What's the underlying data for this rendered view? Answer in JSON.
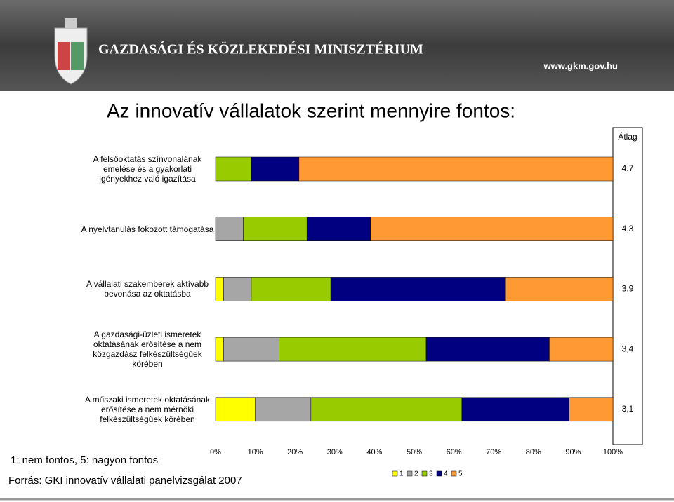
{
  "header": {
    "ministry": "GAZDASÁGI ÉS KÖZLEKEDÉSI MINISZTÉRIUM",
    "url": "www.gkm.gov.hu"
  },
  "chart_data": {
    "type": "stacked-bar-horizontal",
    "title": "Az innovatív vállalatok szerint mennyire fontos:",
    "categories": [
      "A felsőoktatás színvonalának emelése és a gyakorlati igényekhez való igazítása",
      "A nyelvtanulás fokozott támogatása",
      "A vállalati szakemberek aktívabb bevonása az oktatásba",
      "A gazdasági-üzleti ismeretek oktatásának erősítése a nem közgazdász felkészültségűek körében",
      "A műszaki ismeretek oktatásának erősítése a nem mérnöki felkészültségűek körében"
    ],
    "series": [
      {
        "name": "1",
        "color": "#ffff00",
        "values": [
          0,
          0,
          2,
          2,
          10
        ]
      },
      {
        "name": "2",
        "color": "#a6a6a6",
        "values": [
          0,
          7,
          7,
          14,
          14
        ]
      },
      {
        "name": "3",
        "color": "#99cc00",
        "values": [
          9,
          16,
          20,
          37,
          38
        ]
      },
      {
        "name": "4",
        "color": "#000080",
        "values": [
          12,
          16,
          44,
          31,
          27
        ]
      },
      {
        "name": "5",
        "color": "#ff9933",
        "values": [
          79,
          61,
          27,
          16,
          11
        ]
      }
    ],
    "xlim": [
      0,
      100
    ],
    "xticks": [
      {
        "value": 0,
        "label": "0%"
      },
      {
        "value": 10,
        "label": "10%"
      },
      {
        "value": 20,
        "label": "20%"
      },
      {
        "value": 30,
        "label": "30%"
      },
      {
        "value": 40,
        "label": "40%"
      },
      {
        "value": 50,
        "label": "50%"
      },
      {
        "value": 60,
        "label": "60%"
      },
      {
        "value": 70,
        "label": "70%"
      },
      {
        "value": 80,
        "label": "80%"
      },
      {
        "value": 90,
        "label": "90%"
      },
      {
        "value": 100,
        "label": "100%"
      }
    ],
    "averages": {
      "label": "Átlag",
      "values": [
        4.7,
        4.3,
        3.9,
        3.4,
        3.1
      ],
      "value_labels": [
        "4,7",
        "4,3",
        "3,9",
        "3,4",
        "3,1"
      ]
    },
    "note": "1: nem fontos, 5: nagyon fontos",
    "source": "Forrás: GKI innovatív vállalati panelvizsgálat 2007"
  }
}
